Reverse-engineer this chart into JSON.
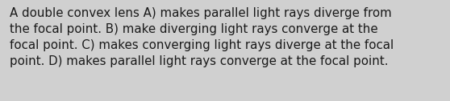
{
  "lines": [
    "A double convex lens A) makes parallel light rays diverge from",
    "the focal point. B) make diverging light rays converge at the",
    "focal point. C) makes converging light rays diverge at the focal",
    "point. D) makes parallel light rays converge at the focal point."
  ],
  "background_color": "#d0d0d0",
  "text_color": "#1a1a1a",
  "font_size": 10.8,
  "font_family": "DejaVu Sans",
  "fig_width": 5.58,
  "fig_height": 1.26,
  "dpi": 100
}
